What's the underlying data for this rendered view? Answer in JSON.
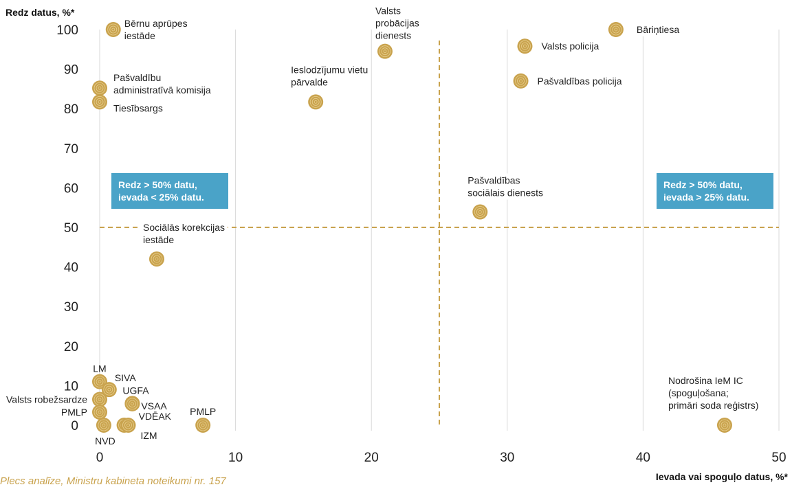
{
  "source_text": "Plecs analīze, Ministru kabineta noteikumi nr. 157",
  "colors": {
    "point": "#c9a34e",
    "threshold": "#c9a34e",
    "grid": "#d9d9d9",
    "box": "#4aa3c8"
  },
  "boxes": {
    "left": [
      "Redz > 50% datu,",
      "ievada < 25% datu."
    ],
    "right": [
      "Redz > 50% datu,",
      "ievada > 25% datu."
    ]
  },
  "chart_data": {
    "type": "scatter",
    "ylabel": "Redz datus, %*",
    "xlabel": "Ievada vai spoguļo datus, %*",
    "xlim": [
      0,
      50
    ],
    "ylim": [
      0,
      100
    ],
    "xticks": [
      0,
      10,
      20,
      30,
      40,
      50
    ],
    "yticks": [
      0,
      10,
      20,
      30,
      40,
      50,
      60,
      70,
      80,
      90,
      100
    ],
    "grid": "vertical",
    "thresholds": {
      "x": 25,
      "y": 50
    },
    "points": [
      {
        "x": 1,
        "y": 100,
        "label": [
          "Bērnu aprūpes",
          "iestāde"
        ]
      },
      {
        "x": 21,
        "y": 94.5,
        "label": [
          "Valsts",
          "probācijas",
          "dienests"
        ]
      },
      {
        "x": 38,
        "y": 100,
        "label": [
          "Bāriņtiesa"
        ]
      },
      {
        "x": 31.3,
        "y": 95.8,
        "label": [
          "Valsts policija"
        ]
      },
      {
        "x": 31,
        "y": 87,
        "label": [
          "Pašvaldības policija"
        ]
      },
      {
        "x": 0,
        "y": 85.2,
        "label": [
          "Pašvaldību",
          "administratīvā komisija"
        ]
      },
      {
        "x": 0,
        "y": 81.7,
        "label": [
          "Tiesībsargs"
        ]
      },
      {
        "x": 15.9,
        "y": 81.7,
        "label": [
          "Ieslodzījumu vietu",
          "pārvalde"
        ]
      },
      {
        "x": 28,
        "y": 53.9,
        "label": [
          "Pašvaldības",
          "sociālais dienests"
        ]
      },
      {
        "x": 4.2,
        "y": 42,
        "label": [
          "Sociālās korekcijas",
          "iestāde"
        ]
      },
      {
        "x": 0,
        "y": 11,
        "label": [
          "LM"
        ]
      },
      {
        "x": 0.7,
        "y": 9,
        "label": [
          "SIVA"
        ]
      },
      {
        "x": 0,
        "y": 6.5,
        "label": [
          "Valsts robežsardze"
        ]
      },
      {
        "x": 2.4,
        "y": 5.5,
        "label": [
          "UGFA"
        ]
      },
      {
        "x": 0,
        "y": 3.3,
        "label": [
          "PMLP"
        ]
      },
      {
        "x": 2.4,
        "y": 5.4,
        "label": [
          "VSAA"
        ]
      },
      {
        "x": 0.3,
        "y": 0,
        "label": [
          "NVD"
        ]
      },
      {
        "x": 1.8,
        "y": 0,
        "label": [
          "VDĒAK"
        ]
      },
      {
        "x": 2.1,
        "y": 0,
        "label": [
          "IZM"
        ]
      },
      {
        "x": 7.6,
        "y": 0,
        "label": [
          "PMLP"
        ]
      },
      {
        "x": 46,
        "y": 0,
        "label": [
          "Nodrošina IeM IC",
          "(spoguļošana;",
          "primāri soda reģistrs)"
        ]
      }
    ]
  }
}
